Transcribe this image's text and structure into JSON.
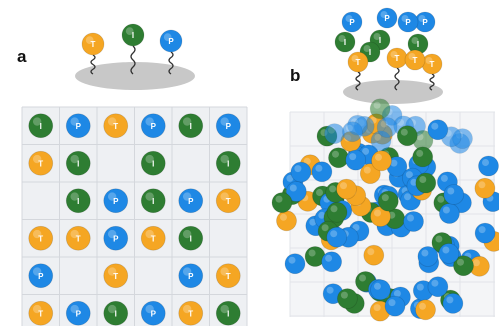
{
  "panels": [
    {
      "id": "a",
      "label": "a"
    },
    {
      "id": "b",
      "label": "b"
    }
  ],
  "letters": {
    "yellow": "T",
    "green": "I",
    "blue": "P"
  },
  "colors": {
    "yellow": "#f5a623",
    "green": "#2e7d32",
    "blue": "#1e88e5",
    "tray": "#c8c8c8",
    "grid_bg": "#eef0f3",
    "grid_line": "#d4d7dc"
  },
  "panel_a": {
    "top_motif": [
      "T",
      "I",
      "P"
    ],
    "grid_rows": [
      [
        "I",
        "P",
        "T",
        "P",
        "I",
        "P"
      ],
      [
        "T",
        "I",
        "",
        "I",
        "",
        "I"
      ],
      [
        "",
        "I",
        "P",
        "I",
        "P",
        "T"
      ],
      [
        "T",
        "T",
        "P",
        "T",
        "I",
        ""
      ],
      [
        "P",
        "",
        "T",
        "",
        "P",
        "T"
      ],
      [
        "T",
        "P",
        "I",
        "P",
        "T",
        "I"
      ]
    ]
  },
  "panel_b": {
    "top_motif_balls": [
      "P",
      "P",
      "I",
      "I",
      "I",
      "P",
      "P",
      "I",
      "T",
      "T",
      "T",
      "T"
    ],
    "cluster_count": 120
  }
}
